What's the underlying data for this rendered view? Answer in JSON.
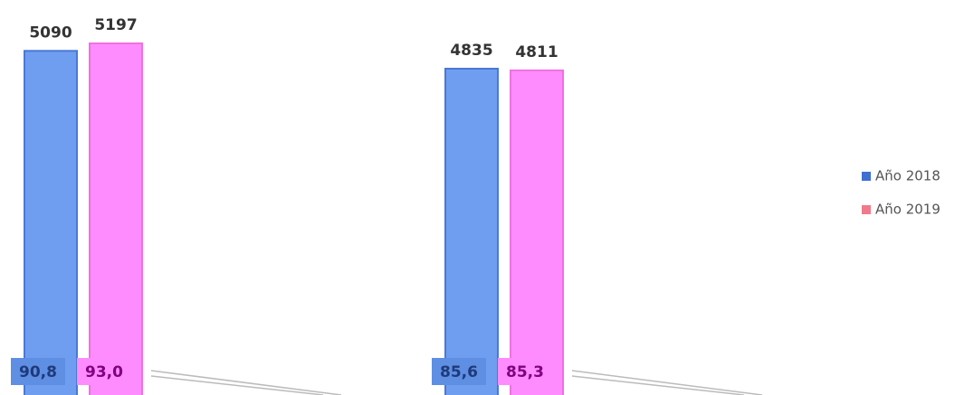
{
  "chart_data": {
    "type": "bar",
    "categories": [
      null,
      null
    ],
    "series": [
      {
        "name": "Año 2018",
        "color": "#6f9ef0",
        "values": [
          5090,
          4835
        ],
        "percent_values": [
          90.8,
          85.6
        ],
        "percent_labels": [
          "90,8",
          "85,6"
        ]
      },
      {
        "name": "Año 2019",
        "color": "#ff8cff",
        "values": [
          5197,
          4811
        ],
        "percent_values": [
          93.0,
          85.3
        ],
        "percent_labels": [
          "93,0",
          "85,3"
        ]
      }
    ],
    "legend": "right"
  }
}
